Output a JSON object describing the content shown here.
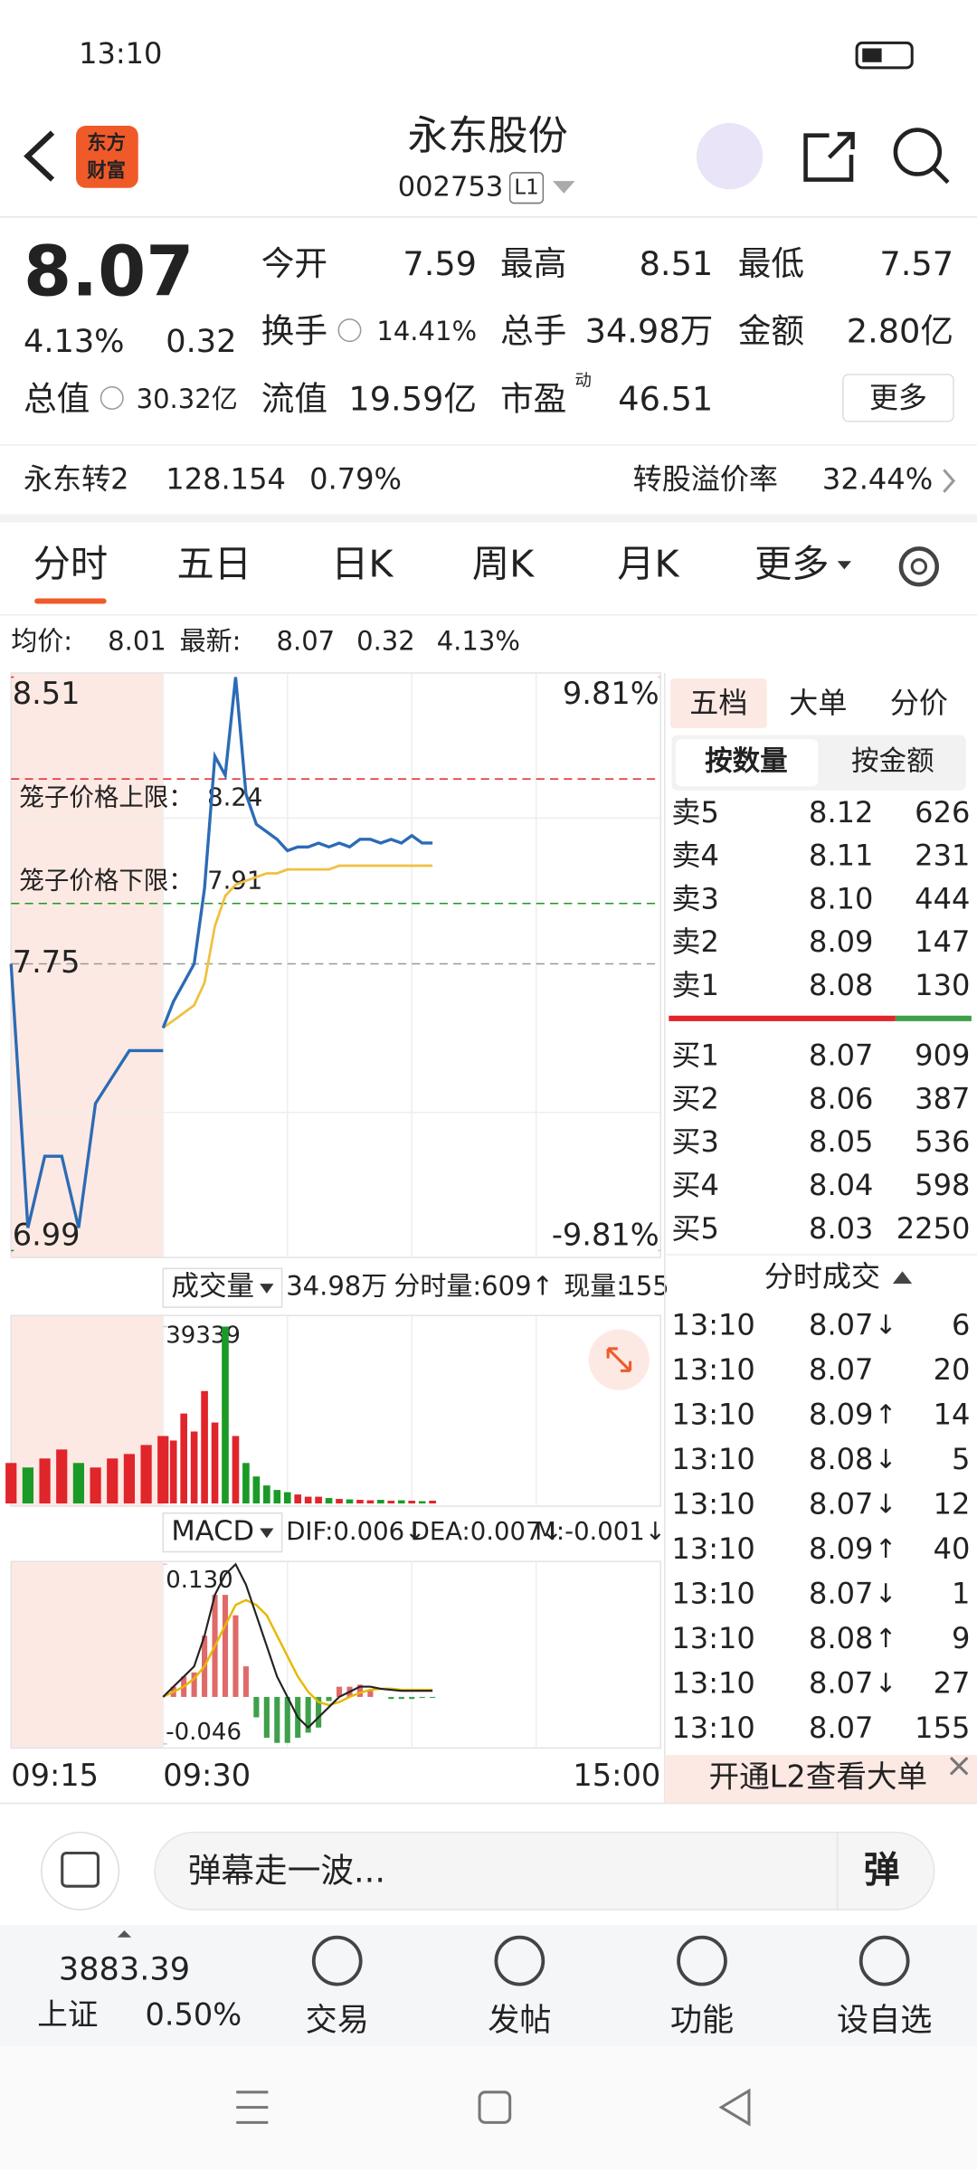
{
  "status_bar": {
    "time": "13:10"
  },
  "header": {
    "logo": [
      "东方",
      "财富"
    ],
    "title": "永东股份",
    "code": "002753",
    "level": "L1"
  },
  "quote": {
    "price": "8.07",
    "change_pct": "4.13%",
    "change": "0.32",
    "more": "更多",
    "fields": [
      {
        "label": "今开",
        "value": "7.59",
        "color": "#1a9a26"
      },
      {
        "label": "最高",
        "value": "8.51",
        "color": "#e0252b"
      },
      {
        "label": "最低",
        "value": "7.57",
        "color": "#1a9a26"
      },
      {
        "label": "换手",
        "value": "14.41%",
        "color": "#222222"
      },
      {
        "label": "总手",
        "value": "34.98万",
        "color": "#222222"
      },
      {
        "label": "金额",
        "value": "2.80亿",
        "color": "#222222"
      },
      {
        "label": "总值",
        "value": "30.32亿",
        "color": "#222222"
      },
      {
        "label": "流值",
        "value": "19.59亿",
        "color": "#222222"
      },
      {
        "label": "市盈",
        "sup": "动",
        "value": "46.51",
        "color": "#222222"
      }
    ]
  },
  "bond": {
    "name": "永东转2",
    "price": "128.154",
    "pct": "0.79%",
    "premium_label": "转股溢价率",
    "premium": "32.44%"
  },
  "tabs": [
    "分时",
    "五日",
    "日K",
    "周K",
    "月K",
    "更多"
  ],
  "info_bar": {
    "avg_label": "均价:",
    "avg": "8.01",
    "latest_label": "最新:",
    "latest": "8.07",
    "change": "0.32",
    "pct": "4.13%"
  },
  "chart_data": [
    {
      "type": "line",
      "auction_values": [
        7.75,
        7.05,
        7.24,
        7.24,
        7.05,
        7.38,
        7.45,
        7.52,
        7.52,
        7.52
      ],
      "values": [
        7.58,
        7.65,
        7.7,
        7.75,
        7.95,
        8.3,
        8.25,
        8.51,
        8.2,
        8.12,
        8.1,
        8.08,
        8.05,
        8.06,
        8.06,
        8.07,
        8.06,
        8.07,
        8.06,
        8.08,
        8.08,
        8.07,
        8.08,
        8.07,
        8.09,
        8.07,
        8.07
      ],
      "avg_values": [
        7.58,
        7.6,
        7.62,
        7.64,
        7.7,
        7.85,
        7.93,
        7.96,
        7.97,
        7.98,
        7.99,
        7.99,
        8.0,
        8.0,
        8.0,
        8.0,
        8.0,
        8.01,
        8.01,
        8.01,
        8.01,
        8.01,
        8.01,
        8.01,
        8.01,
        8.01,
        8.01
      ],
      "color": "#2c6bb5",
      "avg_color": "#f0c040",
      "ylim": [
        6.99,
        8.51
      ],
      "yticks": [
        8.51,
        7.75,
        6.99
      ],
      "y2lim": [
        -9.81,
        9.81
      ],
      "y2ticks": [
        {
          "value": 9.81,
          "label": "9.81%"
        },
        {
          "value": -9.81,
          "label": "-9.81%"
        }
      ],
      "x_labels": [
        "09:15",
        "09:30",
        "15:00"
      ],
      "annotations": [
        {
          "label": "笼子价格上限：",
          "value": 8.24,
          "color": "#e0252b"
        },
        {
          "label": "笼子价格下限：",
          "value": 7.91,
          "color": "#1a9a26"
        }
      ]
    },
    {
      "type": "bar",
      "auction_values": [
        9000,
        8000,
        10000,
        12000,
        9000,
        8000,
        10000,
        11000,
        13000,
        15000
      ],
      "values": [
        12000,
        14000,
        20000,
        16000,
        25000,
        18000,
        39339,
        15000,
        9000,
        6000,
        4000,
        3000,
        2500,
        2000,
        1500,
        1500,
        1200,
        1000,
        900,
        800,
        700,
        800,
        600,
        700,
        600,
        500,
        609
      ],
      "ylim": [
        0,
        39339
      ],
      "yticks": [
        39339
      ]
    },
    {
      "type": "macd",
      "dif": [
        0.0,
        0.01,
        0.02,
        0.03,
        0.06,
        0.1,
        0.12,
        0.13,
        0.11,
        0.08,
        0.05,
        0.02,
        0.0,
        -0.02,
        -0.03,
        -0.02,
        -0.01,
        0.0,
        0.005,
        0.01,
        0.01,
        0.008,
        0.007,
        0.006,
        0.006,
        0.006,
        0.006
      ],
      "dea": [
        0.0,
        0.005,
        0.01,
        0.018,
        0.03,
        0.05,
        0.07,
        0.09,
        0.095,
        0.09,
        0.08,
        0.06,
        0.04,
        0.02,
        0.005,
        -0.005,
        -0.008,
        -0.005,
        0.0,
        0.004,
        0.007,
        0.008,
        0.008,
        0.007,
        0.007,
        0.007,
        0.007
      ],
      "values": [
        0.0,
        0.01,
        0.02,
        0.024,
        0.06,
        0.1,
        0.1,
        0.08,
        0.03,
        -0.02,
        -0.04,
        -0.045,
        -0.045,
        -0.04,
        -0.035,
        -0.03,
        -0.004,
        0.01,
        0.01,
        0.012,
        0.006,
        0.0,
        -0.002,
        -0.002,
        -0.002,
        -0.001,
        -0.001
      ],
      "ylim": [
        -0.046,
        0.13
      ],
      "yticks": [
        {
          "value": 0.13,
          "label": "0.130"
        },
        -0.046
      ]
    }
  ],
  "volume_header": {
    "label": "成交量",
    "total": "34.98万",
    "minute": "分时量:609↑",
    "current_label": "现量:",
    "current": "155"
  },
  "macd_header": {
    "label": "MACD",
    "dif": "DIF:0.006↓",
    "dea": "DEA:0.007↓",
    "m": "M:-0.001↓"
  },
  "order_book": {
    "tabs": [
      "五档",
      "大单",
      "分价"
    ],
    "sub_tabs": [
      "按数量",
      "按金额"
    ],
    "asks": [
      {
        "label": "卖5",
        "price": "8.12",
        "qty": "626"
      },
      {
        "label": "卖4",
        "price": "8.11",
        "qty": "231"
      },
      {
        "label": "卖3",
        "price": "8.10",
        "qty": "444"
      },
      {
        "label": "卖2",
        "price": "8.09",
        "qty": "147"
      },
      {
        "label": "卖1",
        "price": "8.08",
        "qty": "130"
      }
    ],
    "bids": [
      {
        "label": "买1",
        "price": "8.07",
        "qty": "909"
      },
      {
        "label": "买2",
        "price": "8.06",
        "qty": "387"
      },
      {
        "label": "买3",
        "price": "8.05",
        "qty": "536"
      },
      {
        "label": "买4",
        "price": "8.04",
        "qty": "598"
      },
      {
        "label": "买5",
        "price": "8.03",
        "qty": "2250"
      }
    ]
  },
  "trades": {
    "title": "分时成交",
    "rows": [
      {
        "time": "13:10",
        "price": "8.07",
        "arrow": "↓",
        "qty": "6"
      },
      {
        "time": "13:10",
        "price": "8.07",
        "qty": "20"
      },
      {
        "time": "13:10",
        "price": "8.09",
        "arrow": "↑",
        "qty": "14"
      },
      {
        "time": "13:10",
        "price": "8.08",
        "arrow": "↓",
        "qty": "5"
      },
      {
        "time": "13:10",
        "price": "8.07",
        "arrow": "↓",
        "qty": "12"
      },
      {
        "time": "13:10",
        "price": "8.09",
        "arrow": "↑",
        "qty": "40"
      },
      {
        "time": "13:10",
        "price": "8.07",
        "arrow": "↓",
        "qty": "1"
      },
      {
        "time": "13:10",
        "price": "8.08",
        "arrow": "↑",
        "qty": "9"
      },
      {
        "time": "13:10",
        "price": "8.07",
        "arrow": "↓",
        "qty": "27"
      },
      {
        "time": "13:10",
        "price": "8.07",
        "qty": "155"
      }
    ]
  },
  "banner": "开通L2查看大单",
  "comment": {
    "placeholder": "弹幕走一波...",
    "button": "弹"
  },
  "nav": {
    "index_value": "3883.39",
    "index_name": "上证",
    "index_change": "0.50%",
    "items": [
      "交易",
      "发帖",
      "功能",
      "设自选"
    ]
  }
}
